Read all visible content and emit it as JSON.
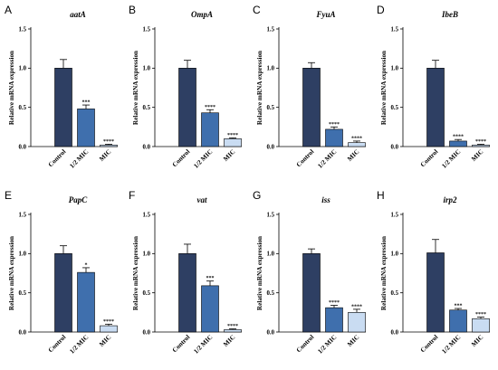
{
  "figure": {
    "colors": {
      "control": "#2e3f63",
      "half_mic": "#3f6fad",
      "mic": "#c9dcf2"
    }
  },
  "chart_data": [
    {
      "type": "bar",
      "panel": "A",
      "title": "aatA",
      "categories": [
        "Control",
        "1/2 MIC",
        "MIC"
      ],
      "values": [
        1.0,
        0.48,
        0.02
      ],
      "errors": [
        0.11,
        0.05,
        0.01
      ],
      "significance": [
        "",
        "***",
        "****"
      ],
      "ylabel": "Relative mRNA expression",
      "ylim": [
        0,
        1.5
      ],
      "yticks": [
        "0.0",
        "0.5",
        "1.0",
        "1.5"
      ]
    },
    {
      "type": "bar",
      "panel": "B",
      "title": "OmpA",
      "categories": [
        "Control",
        "1/2 MIC",
        "MIC"
      ],
      "values": [
        1.0,
        0.43,
        0.1
      ],
      "errors": [
        0.1,
        0.04,
        0.01
      ],
      "significance": [
        "",
        "****",
        "****"
      ],
      "ylabel": "Relative mRNA expression",
      "ylim": [
        0,
        1.5
      ],
      "yticks": [
        "0.0",
        "0.5",
        "1.0",
        "1.5"
      ]
    },
    {
      "type": "bar",
      "panel": "C",
      "title": "FyuA",
      "categories": [
        "Control",
        "1/2 MIC",
        "MIC"
      ],
      "values": [
        1.0,
        0.22,
        0.05
      ],
      "errors": [
        0.07,
        0.03,
        0.02
      ],
      "significance": [
        "",
        "****",
        "****"
      ],
      "ylabel": "Relative mRNA expression",
      "ylim": [
        0,
        1.5
      ],
      "yticks": [
        "0.0",
        "0.5",
        "1.0",
        "1.5"
      ]
    },
    {
      "type": "bar",
      "panel": "D",
      "title": "IbeB",
      "categories": [
        "Control",
        "1/2 MIC",
        "MIC"
      ],
      "values": [
        1.0,
        0.07,
        0.02
      ],
      "errors": [
        0.1,
        0.02,
        0.01
      ],
      "significance": [
        "",
        "****",
        "****"
      ],
      "ylabel": "Relative mRNA expression",
      "ylim": [
        0,
        1.5
      ],
      "yticks": [
        "0.0",
        "0.5",
        "1.0",
        "1.5"
      ]
    },
    {
      "type": "bar",
      "panel": "E",
      "title": "PapC",
      "categories": [
        "Control",
        "1/2 MIC",
        "MIC"
      ],
      "values": [
        1.0,
        0.76,
        0.08
      ],
      "errors": [
        0.1,
        0.06,
        0.02
      ],
      "significance": [
        "",
        "*",
        "****"
      ],
      "ylabel": "Relative mRNA expression",
      "ylim": [
        0,
        1.5
      ],
      "yticks": [
        "0.0",
        "0.5",
        "1.0",
        "1.5"
      ]
    },
    {
      "type": "bar",
      "panel": "F",
      "title": "vat",
      "categories": [
        "Control",
        "1/2 MIC",
        "MIC"
      ],
      "values": [
        1.0,
        0.59,
        0.03
      ],
      "errors": [
        0.12,
        0.06,
        0.01
      ],
      "significance": [
        "",
        "***",
        "****"
      ],
      "ylabel": "Relative mRNA expression",
      "ylim": [
        0,
        1.5
      ],
      "yticks": [
        "0.0",
        "0.5",
        "1.0",
        "1.5"
      ]
    },
    {
      "type": "bar",
      "panel": "G",
      "title": "iss",
      "categories": [
        "Control",
        "1/2 MIC",
        "MIC"
      ],
      "values": [
        1.0,
        0.31,
        0.25
      ],
      "errors": [
        0.06,
        0.03,
        0.04
      ],
      "significance": [
        "",
        "****",
        "****"
      ],
      "ylabel": "Relative mRNA expression",
      "ylim": [
        0,
        1.5
      ],
      "yticks": [
        "0.0",
        "0.5",
        "1.0",
        "1.5"
      ]
    },
    {
      "type": "bar",
      "panel": "H",
      "title": "irp2",
      "categories": [
        "Control",
        "1/2 MIC",
        "MIC"
      ],
      "values": [
        1.01,
        0.28,
        0.17
      ],
      "errors": [
        0.17,
        0.02,
        0.02
      ],
      "significance": [
        "",
        "***",
        "****"
      ],
      "ylabel": "Relative mRNA expression",
      "ylim": [
        0,
        1.5
      ],
      "yticks": [
        "0.0",
        "0.5",
        "1.0",
        "1.5"
      ]
    }
  ]
}
